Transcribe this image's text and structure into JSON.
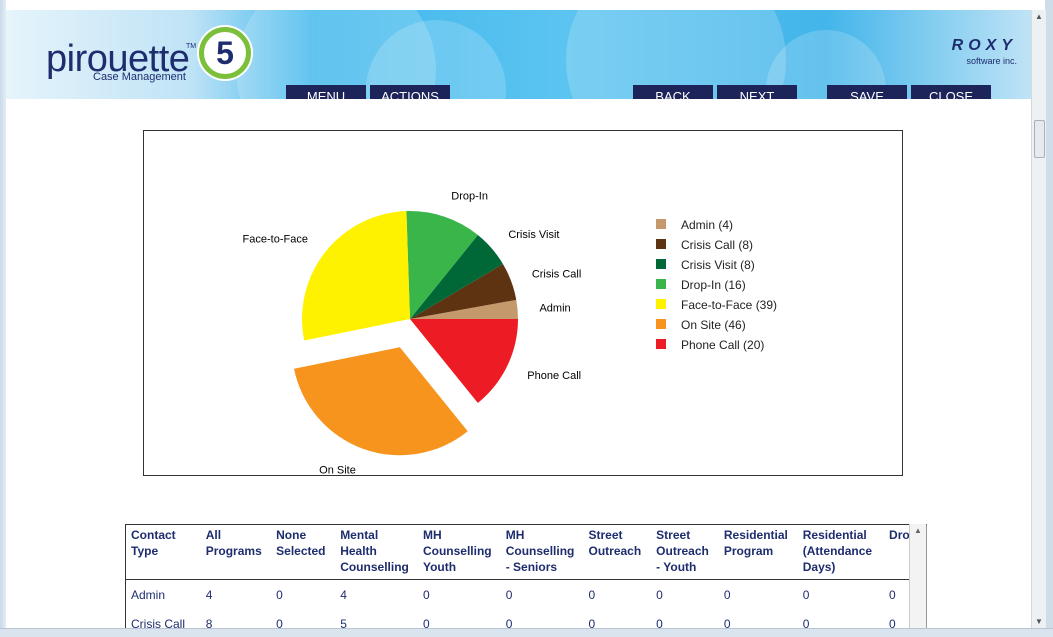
{
  "header": {
    "logo_text": "pirouette",
    "logo_tm": "TM",
    "logo_badge": "5",
    "logo_sub": "Case Management",
    "brand_name": "ROXY",
    "brand_sub": "software inc.",
    "nav": {
      "menu": "MENU",
      "actions": "ACTIONS",
      "back": "BACK",
      "next": "NEXT",
      "save": "SAVE",
      "close": "CLOSE"
    },
    "nav_color": "#1c2459"
  },
  "chart_data": {
    "type": "pie",
    "title": "",
    "slices": [
      {
        "label": "Admin",
        "legend": "Admin (4)",
        "value": 4,
        "color": "#c49a6c"
      },
      {
        "label": "Crisis Call",
        "legend": "Crisis Call (8)",
        "value": 8,
        "color": "#5e3312"
      },
      {
        "label": "Crisis Visit",
        "legend": "Crisis Visit (8)",
        "value": 8,
        "color": "#006837"
      },
      {
        "label": "Drop-In",
        "legend": "Drop-In (16)",
        "value": 16,
        "color": "#39b54a"
      },
      {
        "label": "Face-to-Face",
        "legend": "Face-to-Face (39)",
        "value": 39,
        "color": "#fff200"
      },
      {
        "label": "On Site",
        "legend": "On Site (46)",
        "value": 46,
        "color": "#f7941d",
        "exploded": true
      },
      {
        "label": "Phone Call",
        "legend": "Phone Call (20)",
        "value": 20,
        "color": "#ed1c24"
      }
    ],
    "legend_position": "right"
  },
  "table": {
    "headers": [
      [
        "Contact",
        "Type"
      ],
      [
        "All",
        "Programs"
      ],
      [
        "None",
        "Selected"
      ],
      [
        "Mental",
        "Health",
        "Counselling"
      ],
      [
        "MH",
        "Counselling",
        "Youth"
      ],
      [
        "MH",
        "Counselling",
        "- Seniors"
      ],
      [
        "Street",
        "Outreach"
      ],
      [
        "Street",
        "Outreach",
        "- Youth"
      ],
      [
        "Residential",
        "Program"
      ],
      [
        "Residential",
        "(Attendance",
        "Days)"
      ],
      [
        "Drop-"
      ]
    ],
    "rows": [
      [
        "Admin",
        "4",
        "0",
        "4",
        "0",
        "0",
        "0",
        "0",
        "0",
        "0",
        "0"
      ],
      [
        "Crisis Call",
        "8",
        "0",
        "5",
        "0",
        "0",
        "0",
        "0",
        "0",
        "0",
        "0"
      ]
    ]
  }
}
